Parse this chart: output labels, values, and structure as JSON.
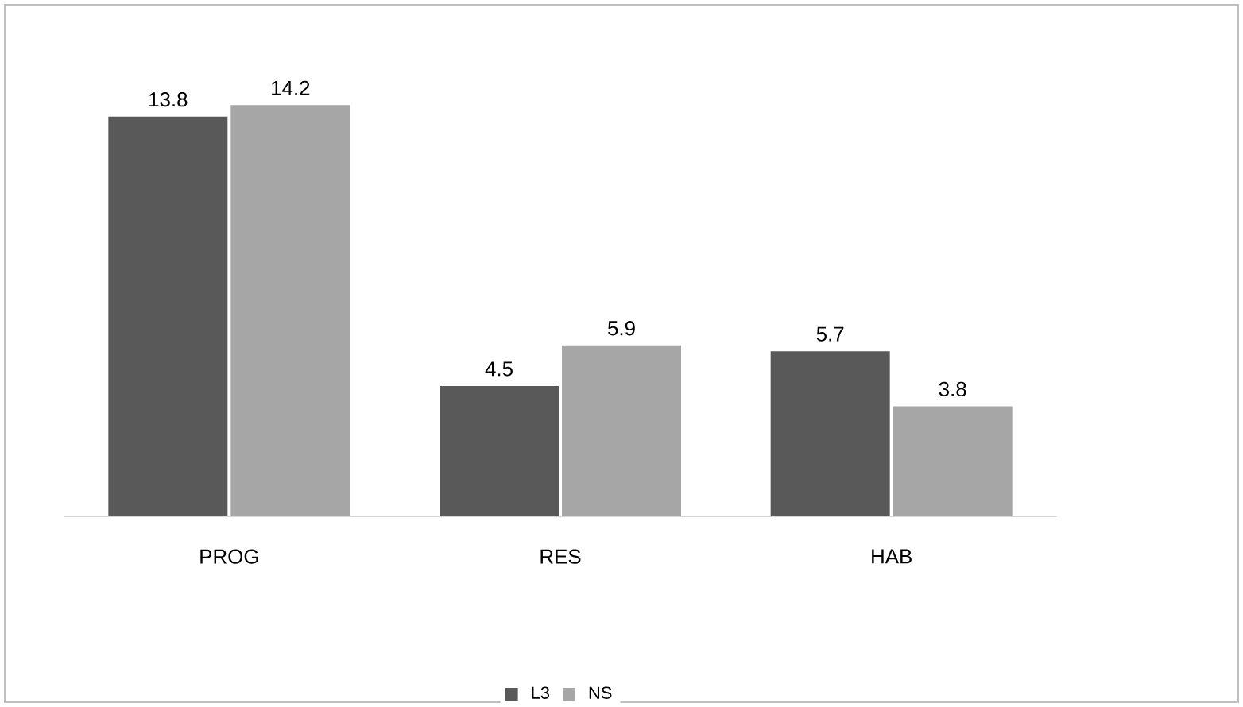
{
  "chart_data": {
    "type": "bar",
    "categories": [
      "PROG",
      "RES",
      "HAB"
    ],
    "series": [
      {
        "name": "L3",
        "color": "#595959",
        "values": [
          13.8,
          4.5,
          5.7
        ]
      },
      {
        "name": "NS",
        "color": "#a6a6a6",
        "values": [
          14.2,
          5.9,
          3.8
        ]
      }
    ],
    "data_labels": true,
    "legend": "bottom"
  }
}
